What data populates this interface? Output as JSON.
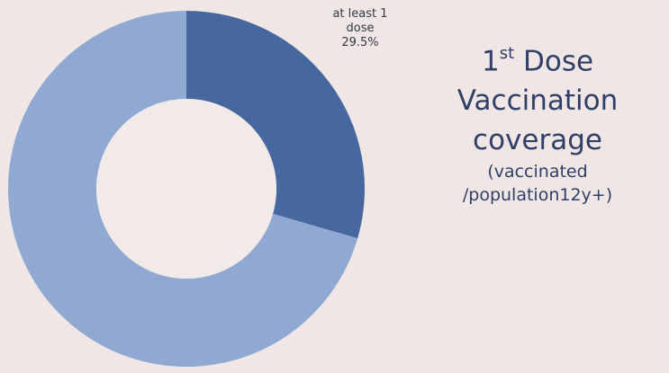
{
  "chart_data": {
    "type": "pie",
    "donut": true,
    "slices": [
      {
        "label": "at least 1 dose",
        "value": 29.5,
        "color": "#46689e"
      },
      {
        "label": "",
        "value": 70.5,
        "color": "#8fa9d2"
      }
    ],
    "data_labels": {
      "line1": "at least 1",
      "line2": "dose",
      "line3": "29.5%"
    },
    "title": {
      "line1_main": "1",
      "line1_sup": "st",
      "line1_rest": "Dose",
      "line2": "Vaccination",
      "line3": "coverage",
      "line4": "(vaccinated",
      "line5": "/population12y+)"
    }
  }
}
